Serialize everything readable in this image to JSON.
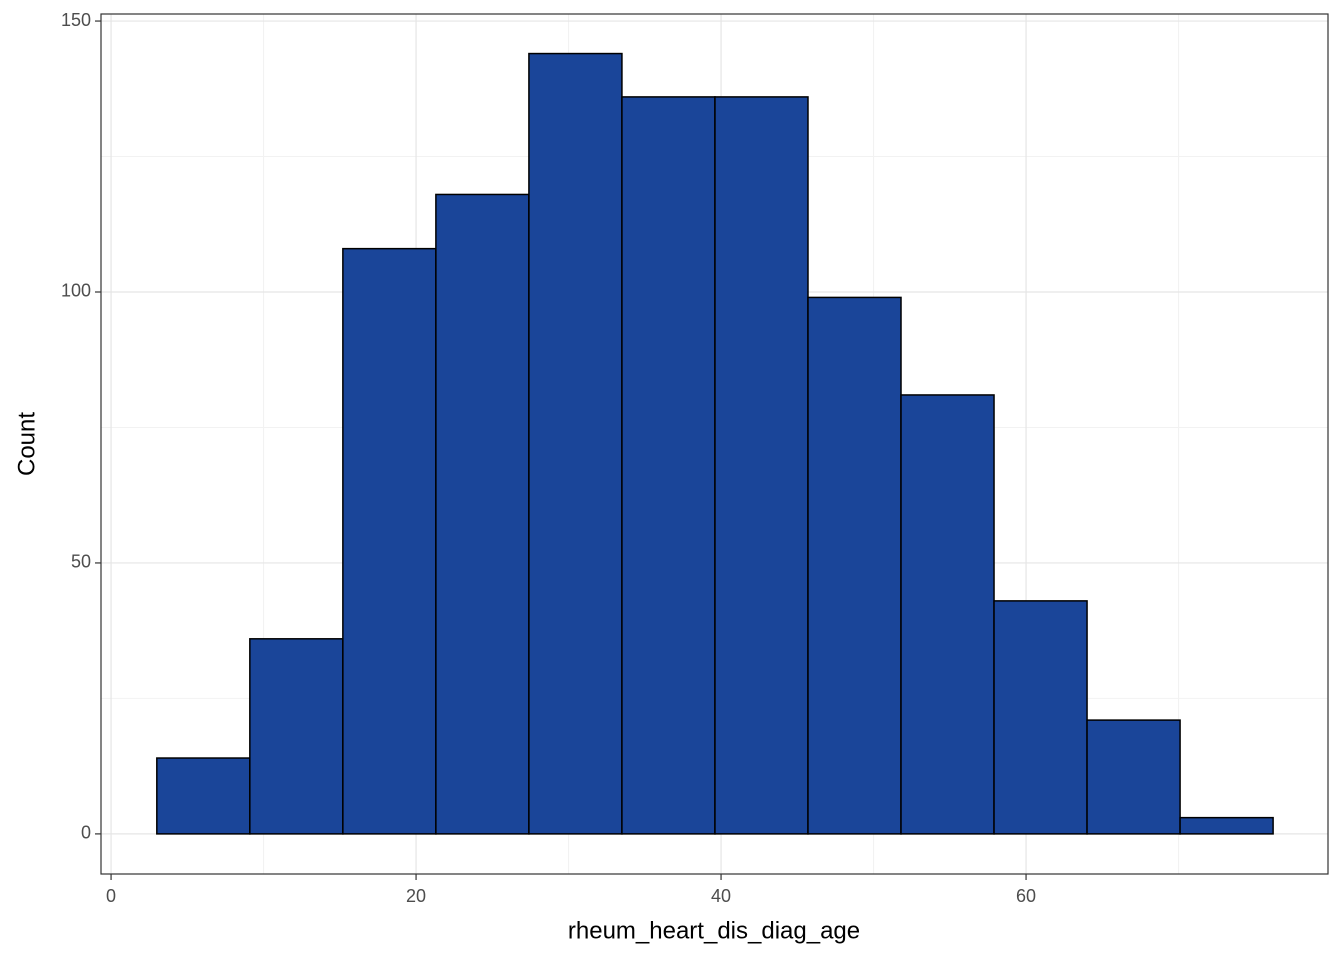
{
  "chart_data": {
    "type": "histogram",
    "x_label": "rheum_heart_dis_diag_age",
    "y_label": "Count",
    "bins": [
      3.0,
      9.1,
      15.2,
      21.3,
      27.4,
      33.5,
      39.6,
      45.7,
      51.8,
      57.9,
      64.0,
      70.1,
      76.2
    ],
    "counts": [
      14,
      36,
      108,
      118,
      144,
      136,
      136,
      99,
      81,
      43,
      21,
      3
    ],
    "color": "#1a4599",
    "edge_color": "#000000",
    "xlim": [
      -0.66,
      79.8
    ],
    "xticks": [
      0,
      20,
      40,
      60
    ],
    "xminor": [
      10,
      30,
      50,
      70
    ],
    "ylim": [
      -7.4,
      151.3
    ],
    "yticks": [
      0,
      50,
      100,
      150
    ],
    "yminor": [
      25,
      75,
      125
    ],
    "grid": true
  }
}
